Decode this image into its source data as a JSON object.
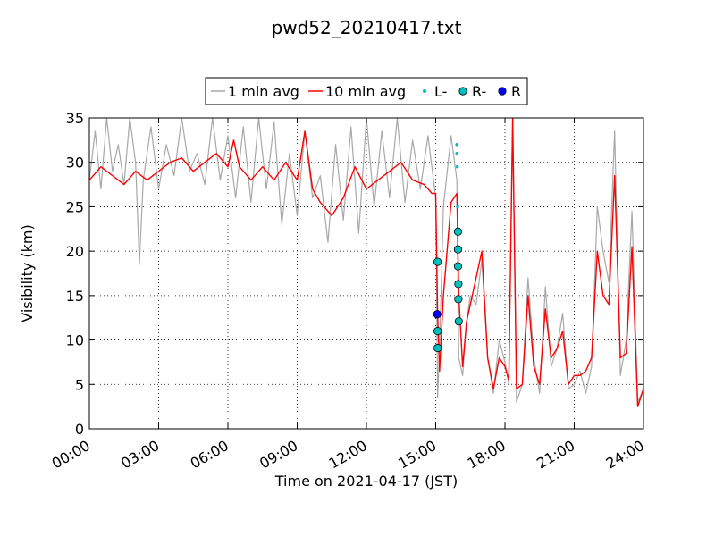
{
  "chart_data": {
    "type": "line",
    "title": "pwd52_20210417.txt",
    "xlabel": "Time on 2021-04-17 (JST)",
    "ylabel": "Visibility (km)",
    "xlim": [
      "2021-04-17 00:00",
      "2021-04-18 00:00"
    ],
    "ylim": [
      0,
      35
    ],
    "grid": true,
    "legend_placement": "top-center, outside plot",
    "x_tick_labels": [
      "00:00",
      "03:00",
      "06:00",
      "09:00",
      "12:00",
      "15:00",
      "18:00",
      "21:00",
      "24:00"
    ],
    "y_ticks": [
      0,
      5,
      10,
      15,
      20,
      25,
      30,
      35
    ],
    "series": [
      {
        "name": "1 min avg",
        "style": "line",
        "color": "#a8a8a8",
        "points": [
          [
            "00:00",
            28.0
          ],
          [
            "00:15",
            33.5
          ],
          [
            "00:30",
            27.0
          ],
          [
            "00:45",
            35.0
          ],
          [
            "01:00",
            29.0
          ],
          [
            "01:15",
            32.0
          ],
          [
            "01:30",
            27.5
          ],
          [
            "01:45",
            35.0
          ],
          [
            "02:00",
            30.0
          ],
          [
            "02:10",
            18.5
          ],
          [
            "02:20",
            28.0
          ],
          [
            "02:40",
            34.0
          ],
          [
            "03:00",
            27.0
          ],
          [
            "03:20",
            32.0
          ],
          [
            "03:40",
            28.5
          ],
          [
            "04:00",
            35.0
          ],
          [
            "04:20",
            29.0
          ],
          [
            "04:40",
            31.0
          ],
          [
            "05:00",
            27.5
          ],
          [
            "05:20",
            35.0
          ],
          [
            "05:40",
            28.0
          ],
          [
            "06:00",
            33.0
          ],
          [
            "06:20",
            26.0
          ],
          [
            "06:40",
            34.0
          ],
          [
            "07:00",
            25.5
          ],
          [
            "07:20",
            35.0
          ],
          [
            "07:40",
            27.0
          ],
          [
            "08:00",
            34.5
          ],
          [
            "08:20",
            23.0
          ],
          [
            "08:40",
            31.0
          ],
          [
            "09:00",
            24.0
          ],
          [
            "09:20",
            33.5
          ],
          [
            "09:40",
            26.0
          ],
          [
            "10:00",
            28.5
          ],
          [
            "10:20",
            21.0
          ],
          [
            "10:40",
            32.0
          ],
          [
            "11:00",
            23.5
          ],
          [
            "11:20",
            34.0
          ],
          [
            "11:40",
            22.0
          ],
          [
            "12:00",
            35.0
          ],
          [
            "12:20",
            25.0
          ],
          [
            "12:40",
            33.5
          ],
          [
            "13:00",
            26.0
          ],
          [
            "13:20",
            35.0
          ],
          [
            "13:40",
            25.5
          ],
          [
            "14:00",
            32.5
          ],
          [
            "14:20",
            27.0
          ],
          [
            "14:40",
            33.0
          ],
          [
            "15:00",
            26.0
          ],
          [
            "15:05",
            3.5
          ],
          [
            "15:10",
            9.0
          ],
          [
            "15:20",
            25.0
          ],
          [
            "15:40",
            33.0
          ],
          [
            "15:55",
            28.0
          ],
          [
            "16:00",
            8.0
          ],
          [
            "16:10",
            6.0
          ],
          [
            "16:20",
            12.0
          ],
          [
            "16:30",
            15.0
          ],
          [
            "16:45",
            14.0
          ],
          [
            "17:00",
            19.0
          ],
          [
            "17:15",
            8.0
          ],
          [
            "17:30",
            4.0
          ],
          [
            "17:45",
            10.0
          ],
          [
            "18:00",
            7.5
          ],
          [
            "18:10",
            5.0
          ],
          [
            "18:20",
            35.0
          ],
          [
            "18:30",
            3.0
          ],
          [
            "18:45",
            5.0
          ],
          [
            "19:00",
            17.0
          ],
          [
            "19:15",
            8.0
          ],
          [
            "19:30",
            4.0
          ],
          [
            "19:45",
            16.0
          ],
          [
            "20:00",
            7.0
          ],
          [
            "20:15",
            9.0
          ],
          [
            "20:30",
            13.0
          ],
          [
            "20:45",
            4.5
          ],
          [
            "21:00",
            5.0
          ],
          [
            "21:15",
            6.5
          ],
          [
            "21:30",
            4.0
          ],
          [
            "21:45",
            7.0
          ],
          [
            "22:00",
            25.0
          ],
          [
            "22:15",
            20.0
          ],
          [
            "22:30",
            16.5
          ],
          [
            "22:45",
            33.5
          ],
          [
            "23:00",
            6.0
          ],
          [
            "23:15",
            10.0
          ],
          [
            "23:30",
            24.5
          ],
          [
            "23:45",
            3.0
          ],
          [
            "24:00",
            4.5
          ]
        ]
      },
      {
        "name": "10 min avg",
        "style": "line",
        "color": "#ff0000",
        "points": [
          [
            "00:00",
            28.0
          ],
          [
            "00:30",
            29.5
          ],
          [
            "01:00",
            28.5
          ],
          [
            "01:30",
            27.5
          ],
          [
            "02:00",
            29.0
          ],
          [
            "02:30",
            28.0
          ],
          [
            "03:00",
            29.0
          ],
          [
            "03:30",
            30.0
          ],
          [
            "04:00",
            30.5
          ],
          [
            "04:30",
            29.0
          ],
          [
            "05:00",
            30.0
          ],
          [
            "05:30",
            31.0
          ],
          [
            "06:00",
            29.5
          ],
          [
            "06:15",
            32.5
          ],
          [
            "06:30",
            29.5
          ],
          [
            "07:00",
            28.0
          ],
          [
            "07:30",
            29.5
          ],
          [
            "08:00",
            28.0
          ],
          [
            "08:30",
            30.0
          ],
          [
            "09:00",
            28.0
          ],
          [
            "09:20",
            33.5
          ],
          [
            "09:40",
            27.0
          ],
          [
            "10:00",
            25.5
          ],
          [
            "10:30",
            24.0
          ],
          [
            "11:00",
            26.0
          ],
          [
            "11:30",
            29.5
          ],
          [
            "12:00",
            27.0
          ],
          [
            "12:30",
            28.0
          ],
          [
            "13:00",
            29.0
          ],
          [
            "13:30",
            30.0
          ],
          [
            "14:00",
            28.0
          ],
          [
            "14:30",
            27.5
          ],
          [
            "14:50",
            26.5
          ],
          [
            "15:00",
            26.5
          ],
          [
            "15:05",
            13.0
          ],
          [
            "15:10",
            6.5
          ],
          [
            "15:20",
            15.0
          ],
          [
            "15:40",
            25.5
          ],
          [
            "15:55",
            26.5
          ],
          [
            "16:00",
            15.0
          ],
          [
            "16:10",
            7.0
          ],
          [
            "16:20",
            12.0
          ],
          [
            "16:40",
            16.0
          ],
          [
            "17:00",
            20.0
          ],
          [
            "17:15",
            8.0
          ],
          [
            "17:30",
            4.5
          ],
          [
            "17:45",
            8.0
          ],
          [
            "18:00",
            7.0
          ],
          [
            "18:10",
            5.5
          ],
          [
            "18:20",
            35.0
          ],
          [
            "18:30",
            4.5
          ],
          [
            "18:45",
            5.0
          ],
          [
            "19:00",
            15.0
          ],
          [
            "19:15",
            7.0
          ],
          [
            "19:30",
            5.0
          ],
          [
            "19:45",
            13.5
          ],
          [
            "20:00",
            8.0
          ],
          [
            "20:15",
            9.0
          ],
          [
            "20:30",
            11.0
          ],
          [
            "20:45",
            5.0
          ],
          [
            "21:00",
            6.0
          ],
          [
            "21:15",
            6.0
          ],
          [
            "21:30",
            6.5
          ],
          [
            "21:45",
            8.0
          ],
          [
            "22:00",
            20.0
          ],
          [
            "22:15",
            15.0
          ],
          [
            "22:30",
            14.0
          ],
          [
            "22:45",
            28.5
          ],
          [
            "23:00",
            8.0
          ],
          [
            "23:15",
            8.5
          ],
          [
            "23:30",
            20.5
          ],
          [
            "23:45",
            2.5
          ],
          [
            "24:00",
            4.5
          ]
        ]
      },
      {
        "name": "L-",
        "style": "small-dot",
        "color": "#00bfbf",
        "points": [
          [
            "15:55",
            32.0
          ],
          [
            "15:55",
            31.0
          ],
          [
            "15:56",
            29.5
          ],
          [
            "15:57",
            25.0
          ]
        ]
      },
      {
        "name": "R-",
        "style": "marker",
        "color": "#00bfbf",
        "points": [
          [
            "15:05",
            18.8
          ],
          [
            "15:05",
            11.0
          ],
          [
            "15:05",
            9.1
          ],
          [
            "15:58",
            22.2
          ],
          [
            "15:58",
            20.2
          ],
          [
            "15:58",
            18.3
          ],
          [
            "15:59",
            16.3
          ],
          [
            "15:59",
            14.6
          ],
          [
            "16:00",
            12.1
          ]
        ]
      },
      {
        "name": "R",
        "style": "marker",
        "color": "#0000ff",
        "points": [
          [
            "15:04",
            12.9
          ]
        ]
      }
    ]
  }
}
